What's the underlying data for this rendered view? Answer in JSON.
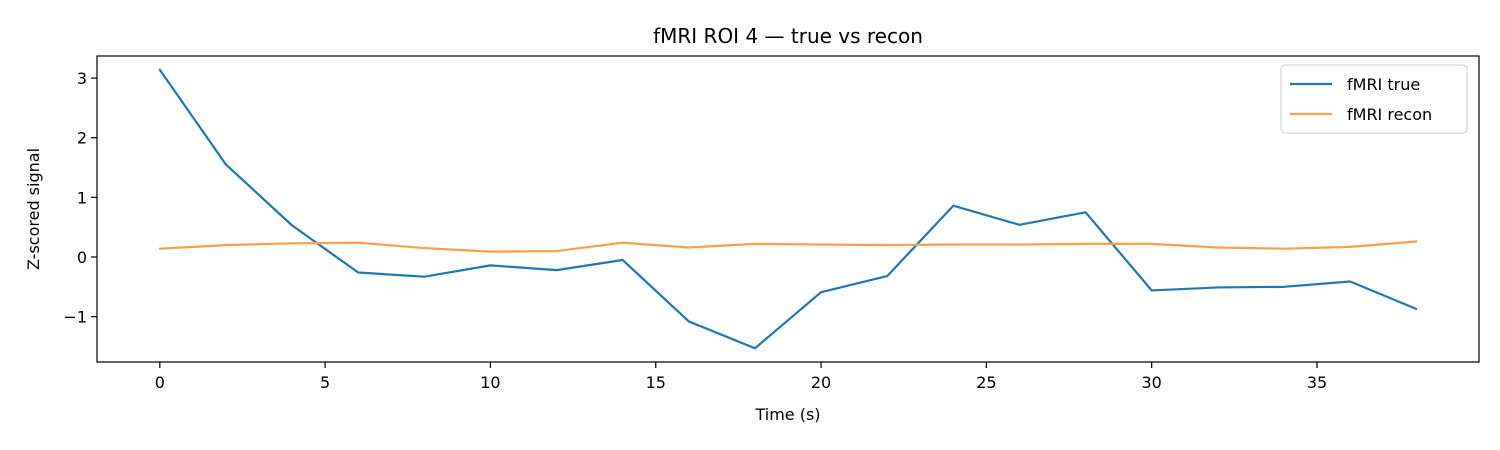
{
  "chart_data": {
    "type": "line",
    "title": "fMRI ROI 4 — true vs recon",
    "xlabel": "Time (s)",
    "ylabel": "Z-scored signal",
    "x": [
      0,
      2,
      4,
      6,
      8,
      10,
      12,
      14,
      16,
      18,
      20,
      22,
      24,
      26,
      28,
      30,
      32,
      34,
      36,
      38
    ],
    "series": [
      {
        "name": "fMRI true",
        "color": "#1f77b4",
        "values": [
          3.14,
          1.55,
          0.53,
          -0.26,
          -0.33,
          -0.14,
          -0.22,
          -0.05,
          -1.08,
          -1.53,
          -0.59,
          -0.32,
          0.86,
          0.54,
          0.75,
          -0.56,
          -0.51,
          -0.5,
          -0.41,
          -0.87
        ]
      },
      {
        "name": "fMRI recon",
        "color": "#ff9f40",
        "values": [
          0.14,
          0.2,
          0.23,
          0.24,
          0.15,
          0.09,
          0.1,
          0.24,
          0.16,
          0.22,
          0.21,
          0.2,
          0.21,
          0.21,
          0.22,
          0.22,
          0.16,
          0.14,
          0.17,
          0.26
        ]
      }
    ],
    "xlim": [
      -1.9,
      39.9
    ],
    "ylim": [
      -1.76,
      3.37
    ],
    "xticks": [
      0,
      5,
      10,
      15,
      20,
      25,
      30,
      35
    ],
    "yticks": [
      -1,
      0,
      1,
      2,
      3
    ],
    "ytick_labels": [
      "−1",
      "0",
      "1",
      "2",
      "3"
    ],
    "grid": false,
    "legend": "top-right"
  }
}
